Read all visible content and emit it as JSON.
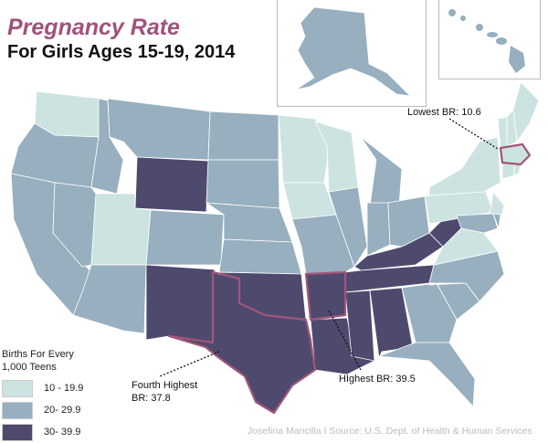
{
  "title": "Pregnancy Rate",
  "subtitle": "For Girls Ages 15-19, 2014",
  "legend": {
    "title_line1": "Births For Every",
    "title_line2": "1,000 Teens",
    "items": [
      {
        "label": "10 - 19.9",
        "color": "#cde3e1"
      },
      {
        "label": "20- 29.9",
        "color": "#97afbf"
      },
      {
        "label": "30- 39.9",
        "color": "#4e4a6e"
      }
    ]
  },
  "highlight_color": "#a0567a",
  "annotations": {
    "lowest": "Lowest BR: 10.6",
    "highest": "HIghest BR: 39.5",
    "fourth_line1": "Fourth Highest",
    "fourth_line2": "BR: 37.8"
  },
  "credit": "Josefina Mancilla  I  Source: U.S. Dept. of Health & Human Services",
  "state_categories": {
    "WA": 0,
    "OR": 1,
    "CA": 1,
    "NV": 1,
    "ID": 1,
    "MT": 1,
    "WY": 2,
    "UT": 0,
    "CO": 1,
    "AZ": 1,
    "NM": 2,
    "ND": 1,
    "SD": 1,
    "NE": 1,
    "KS": 1,
    "OK": 2,
    "TX": 2,
    "MN": 0,
    "IA": 0,
    "MO": 1,
    "AR": 2,
    "LA": 2,
    "WI": 0,
    "IL": 1,
    "MI": 1,
    "IN": 1,
    "OH": 1,
    "KY": 2,
    "TN": 2,
    "MS": 2,
    "AL": 2,
    "GA": 1,
    "FL": 1,
    "SC": 1,
    "NC": 1,
    "VA": 0,
    "WV": 2,
    "PA": 0,
    "NY": 0,
    "NJ": 0,
    "MD": 1,
    "DE": 1,
    "VT": 0,
    "NH": 0,
    "ME": 0,
    "MA": 0,
    "CT": 0,
    "RI": 0,
    "AK": 1,
    "HI": 1
  },
  "highlighted_states": [
    "TX",
    "AR",
    "MA"
  ]
}
